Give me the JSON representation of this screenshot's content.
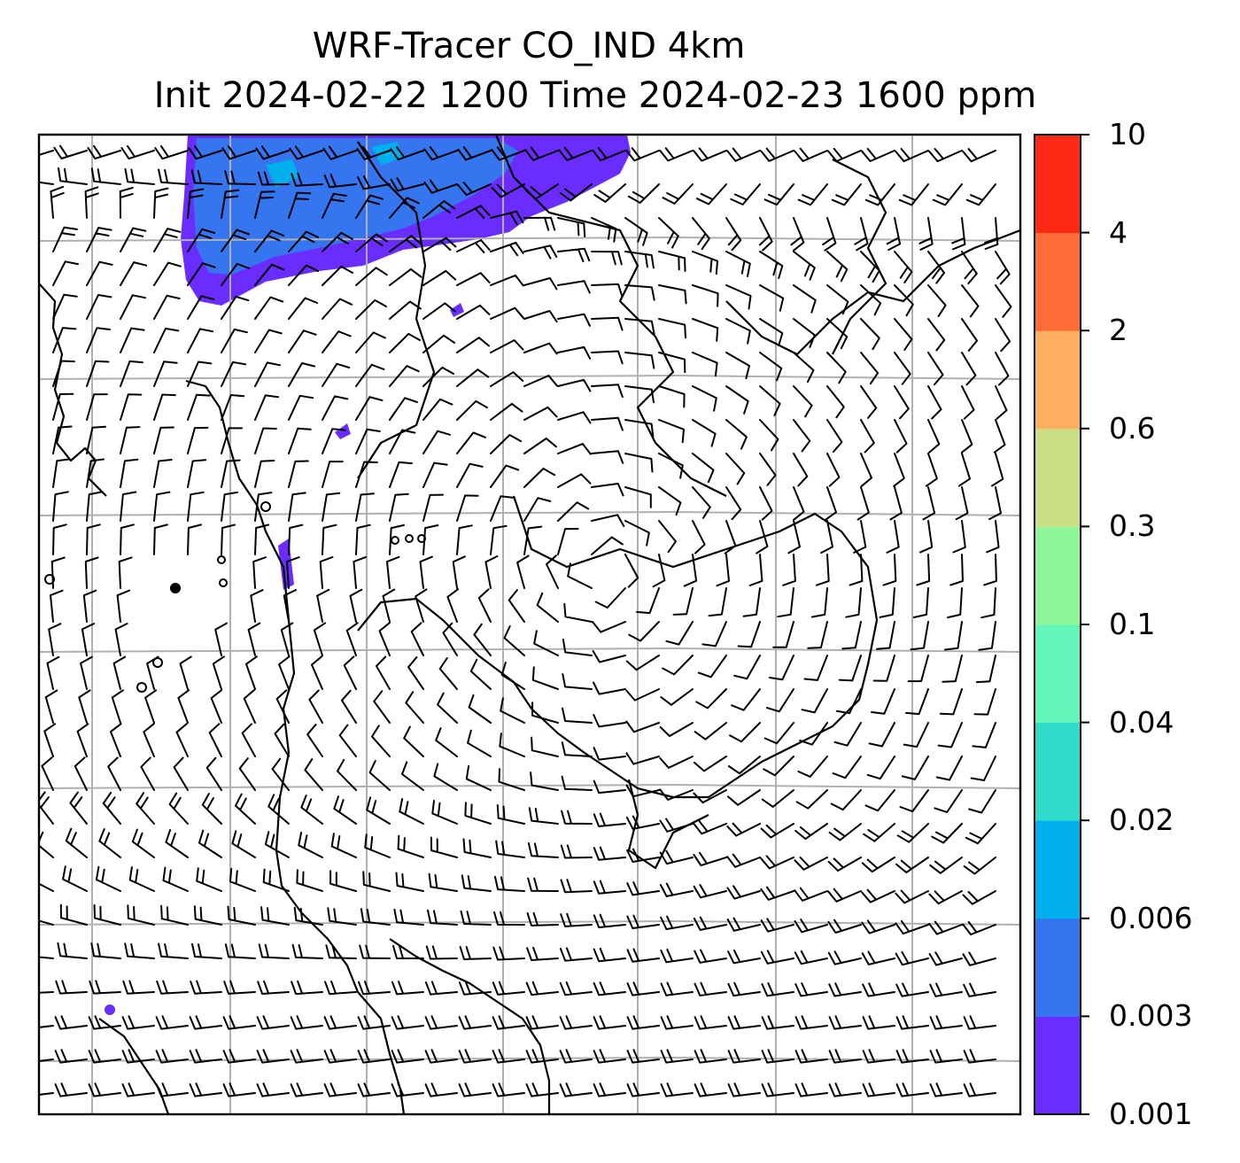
{
  "title_line1": "WRF-Tracer CO_IND 4km",
  "title_line2": "Init 2024-02-22 1200 Time 2024-02-23 1600 ppm",
  "colorbar": {
    "levels": [
      "0.001",
      "0.003",
      "0.006",
      "0.02",
      "0.04",
      "0.1",
      "0.3",
      "0.6",
      "2",
      "4",
      "10"
    ],
    "colors": [
      "#6a2cff",
      "#3575f0",
      "#00b0ee",
      "#2fdccc",
      "#63f6bb",
      "#8ef59a",
      "#ccdf85",
      "#fdae61",
      "#ff6c38",
      "#ff2a16"
    ]
  },
  "map": {
    "frame_color": "#000000",
    "gridline_color": "#b0b0b0",
    "tracer_colors": {
      "low": "#6a2cff",
      "mid": "#3575f0",
      "high": "#00b0ee"
    }
  }
}
